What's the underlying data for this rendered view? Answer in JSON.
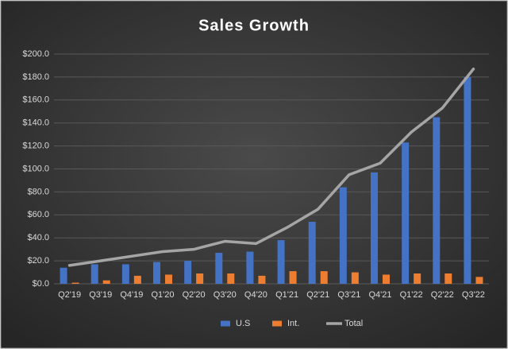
{
  "chart_data": {
    "type": "bar",
    "title": "Sales Growth",
    "categories": [
      "Q2'19",
      "Q3'19",
      "Q4'19",
      "Q1'20",
      "Q2'20",
      "Q3'20",
      "Q4'20",
      "Q1'21",
      "Q2'21",
      "Q3'21",
      "Q4'21",
      "Q1'22",
      "Q2'22",
      "Q3'22"
    ],
    "series": [
      {
        "name": "U.S",
        "color": "#4472c4",
        "values": [
          14,
          17,
          17,
          19,
          20,
          27,
          28,
          38,
          54,
          84,
          97,
          123,
          145,
          180
        ]
      },
      {
        "name": "Int.",
        "color": "#ed7d31",
        "values": [
          1,
          3,
          7,
          8,
          9,
          9,
          7,
          11,
          11,
          10,
          8,
          9,
          9,
          6
        ]
      },
      {
        "name": "Total",
        "color": "#a5a5a5",
        "type": "line",
        "values": [
          16,
          20,
          24,
          28,
          30,
          37,
          35,
          49,
          65,
          95,
          105,
          132,
          153,
          187
        ]
      }
    ],
    "ylim": [
      0,
      200
    ],
    "yticks": [
      {
        "value": 0,
        "label": "$0.0"
      },
      {
        "value": 20,
        "label": "$20.0"
      },
      {
        "value": 40,
        "label": "$40.0"
      },
      {
        "value": 60,
        "label": "$60.0"
      },
      {
        "value": 80,
        "label": "$80.0"
      },
      {
        "value": 100,
        "label": "$100.0"
      },
      {
        "value": 120,
        "label": "$120.0"
      },
      {
        "value": 140,
        "label": "$140.0"
      },
      {
        "value": 160,
        "label": "$160.0"
      },
      {
        "value": 180,
        "label": "$180.0"
      },
      {
        "value": 200,
        "label": "$200.0"
      }
    ],
    "grid": true,
    "legend": "bottom"
  }
}
